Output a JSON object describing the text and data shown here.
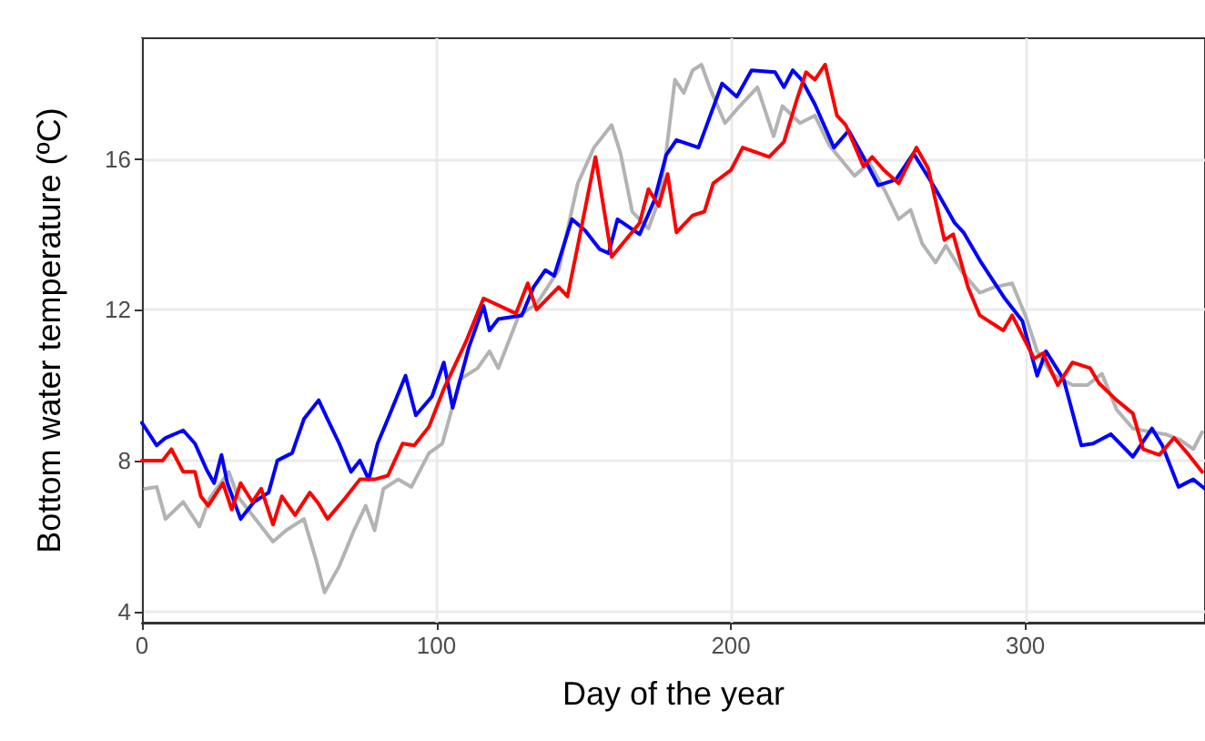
{
  "chart_data": {
    "type": "line",
    "xlabel": "Day of the year",
    "ylabel": "Bottom water temperature (ºC)",
    "xlim": [
      0,
      361
    ],
    "xticks": [
      0,
      100,
      200,
      300
    ],
    "ylim": [
      3.7,
      19.2
    ],
    "yticks": [
      4,
      8,
      12,
      16
    ],
    "grid": true,
    "marker": "none",
    "line_style": "solid",
    "series": [
      {
        "color": "#b3b3b3",
        "x": [
          1,
          5,
          8,
          14,
          19.5,
          23,
          29.5,
          32.5,
          38.5,
          44.5,
          49,
          55,
          59,
          62,
          67,
          72,
          76,
          79,
          82,
          87,
          91.5,
          97.5,
          102,
          108,
          114,
          118,
          121,
          124,
          128,
          134,
          141.5,
          148,
          153.5,
          159.5,
          162.5,
          166.5,
          172,
          175.5,
          178,
          181,
          184,
          187,
          190,
          193,
          198,
          203,
          209,
          214.5,
          217.5,
          223.5,
          228.5,
          233.5,
          242,
          247,
          252,
          257,
          261,
          265,
          269.5,
          273,
          278.5,
          284.5,
          289.5,
          295.5,
          300,
          304,
          309,
          316,
          321,
          326,
          331,
          336.5,
          343,
          347.5,
          352.5,
          357,
          360
        ],
        "values": [
          7.25,
          7.3,
          6.45,
          6.9,
          6.25,
          7.0,
          7.7,
          7.05,
          6.45,
          5.85,
          6.15,
          6.45,
          5.4,
          4.5,
          5.2,
          6.15,
          6.8,
          6.15,
          7.25,
          7.5,
          7.3,
          8.2,
          8.45,
          10.15,
          10.45,
          10.9,
          10.45,
          11.05,
          11.85,
          12.15,
          13.05,
          15.35,
          16.3,
          16.9,
          16.15,
          14.6,
          14.15,
          14.9,
          16.15,
          18.1,
          17.75,
          18.35,
          18.5,
          17.85,
          16.95,
          17.4,
          17.9,
          16.6,
          17.4,
          16.95,
          17.15,
          16.35,
          15.55,
          15.9,
          15.2,
          14.4,
          14.65,
          13.75,
          13.25,
          13.7,
          13.0,
          12.45,
          12.6,
          12.7,
          11.85,
          10.9,
          10.3,
          10.0,
          10.0,
          10.3,
          9.35,
          8.85,
          8.75,
          8.7,
          8.55,
          8.3,
          8.75
        ]
      },
      {
        "color": "#0000ff",
        "x": [
          0,
          5,
          8,
          14,
          18,
          22,
          24.5,
          27,
          29,
          33.5,
          38,
          43,
          46,
          51,
          55,
          60,
          63,
          67,
          71,
          74,
          77,
          80,
          83.5,
          89.5,
          93,
          98.5,
          102.5,
          105.5,
          111,
          116,
          118,
          121,
          129,
          133,
          137,
          140,
          146,
          150.5,
          155.5,
          158.5,
          161.5,
          169,
          174,
          178,
          181.5,
          189,
          193,
          197,
          202,
          207,
          215,
          218,
          221,
          224,
          228.5,
          235,
          240,
          245,
          250,
          256,
          262,
          269.5,
          276,
          279,
          285,
          293,
          299,
          304,
          307,
          313,
          319,
          323,
          329,
          336.5,
          343,
          346.5,
          352,
          357,
          361
        ],
        "values": [
          9.0,
          8.4,
          8.6,
          8.8,
          8.45,
          7.75,
          7.4,
          8.15,
          7.4,
          6.45,
          6.9,
          7.15,
          8.0,
          8.2,
          9.1,
          9.6,
          9.1,
          8.45,
          7.7,
          8.0,
          7.5,
          8.45,
          9.1,
          10.25,
          9.2,
          9.7,
          10.6,
          9.4,
          11.0,
          12.1,
          11.45,
          11.75,
          11.85,
          12.6,
          13.05,
          12.9,
          14.4,
          14.1,
          13.6,
          13.5,
          14.4,
          14.0,
          14.9,
          16.1,
          16.5,
          16.3,
          17.15,
          18.0,
          17.65,
          18.35,
          18.3,
          17.9,
          18.35,
          18.1,
          17.45,
          16.3,
          16.75,
          16.05,
          15.3,
          15.45,
          16.15,
          15.2,
          14.3,
          14.05,
          13.25,
          12.3,
          11.7,
          10.25,
          10.9,
          10.15,
          8.4,
          8.45,
          8.7,
          8.1,
          8.85,
          8.4,
          7.3,
          7.5,
          7.25
        ]
      },
      {
        "color": "#ff0000",
        "x": [
          0,
          7,
          10,
          14,
          18,
          20,
          22.5,
          27.5,
          30.5,
          33.5,
          37.5,
          40.5,
          44.5,
          47.5,
          52,
          57,
          60,
          63,
          69,
          74,
          79,
          83.5,
          88.5,
          92.5,
          97.5,
          102.5,
          104,
          110,
          116,
          127,
          131,
          134,
          141.5,
          144.5,
          148,
          154,
          159.5,
          169,
          172,
          175.5,
          178.5,
          181.5,
          187,
          191,
          194,
          200,
          204,
          213,
          218,
          222.5,
          225.5,
          228.5,
          232,
          236,
          239,
          245,
          248,
          252,
          257,
          263,
          267,
          272.5,
          275.5,
          280.5,
          284.5,
          292.5,
          295.5,
          303,
          306,
          311,
          316,
          322,
          325,
          331,
          336.5,
          340,
          345.5,
          350.5,
          355.5,
          360
        ],
        "values": [
          8.0,
          8.0,
          8.3,
          7.7,
          7.7,
          7.05,
          6.8,
          7.4,
          6.7,
          7.4,
          6.9,
          7.25,
          6.3,
          7.05,
          6.55,
          7.15,
          6.85,
          6.45,
          7.0,
          7.5,
          7.5,
          7.6,
          8.45,
          8.4,
          8.9,
          9.9,
          10.15,
          11.15,
          12.3,
          11.9,
          12.7,
          12.0,
          12.6,
          12.35,
          13.7,
          16.05,
          13.4,
          14.3,
          15.2,
          14.75,
          15.6,
          14.05,
          14.5,
          14.6,
          15.35,
          15.7,
          16.3,
          16.05,
          16.45,
          17.6,
          18.3,
          18.1,
          18.5,
          17.15,
          16.9,
          15.8,
          16.05,
          15.7,
          15.35,
          16.3,
          15.75,
          13.85,
          14.0,
          12.6,
          11.85,
          11.45,
          11.85,
          10.7,
          10.85,
          10.0,
          10.6,
          10.45,
          10.05,
          9.6,
          9.25,
          8.3,
          8.15,
          8.6,
          8.15,
          7.7
        ]
      }
    ]
  }
}
